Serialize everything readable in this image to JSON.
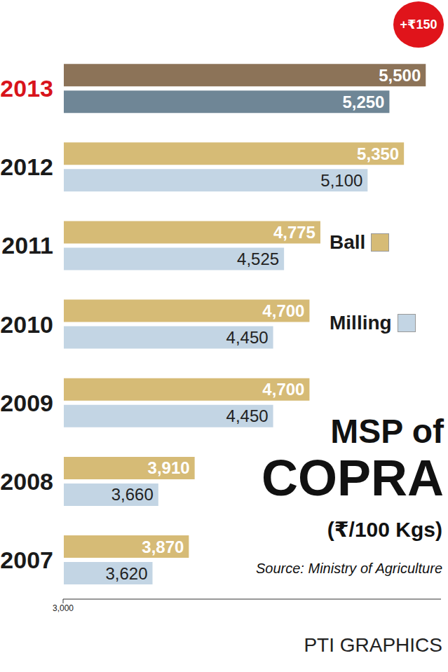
{
  "chart_data": {
    "type": "bar",
    "orientation": "horizontal",
    "title": "MSP of COPRA",
    "subtitle": "(₹/100 Kgs)",
    "annotation": "+₹150",
    "source": "Source: Ministry of Agriculture",
    "credit": "PTI GRAPHICS",
    "categories": [
      "2013",
      "2012",
      "2011",
      "2010",
      "2009",
      "2008",
      "2007"
    ],
    "series": [
      {
        "name": "Ball",
        "color": "#d6bb76",
        "colors": [
          "#8c7358",
          "#d6bb76",
          "#d6bb76",
          "#d6bb76",
          "#d6bb76",
          "#d6bb76",
          "#d6bb76"
        ],
        "values": [
          5500,
          5350,
          4775,
          4700,
          4700,
          3910,
          3870
        ],
        "value_labels": [
          "5,500",
          "5,350",
          "4,775",
          "4,700",
          "4,700",
          "3,910",
          "3,870"
        ]
      },
      {
        "name": "Milling",
        "color": "#c3d5e4",
        "colors": [
          "#6f8696",
          "#c3d5e4",
          "#c3d5e4",
          "#c3d5e4",
          "#c3d5e4",
          "#c3d5e4",
          "#c3d5e4"
        ],
        "values": [
          5250,
          5100,
          4525,
          4450,
          4450,
          3660,
          3620
        ],
        "value_labels": [
          "5,250",
          "5,100",
          "4,525",
          "4,450",
          "4,450",
          "3,660",
          "3,620"
        ]
      }
    ],
    "xlim": [
      3000,
      5600
    ],
    "xticks": [
      {
        "value": 3000,
        "label": "3,000"
      }
    ],
    "grid": false,
    "data_labels": true,
    "legend": "right"
  }
}
